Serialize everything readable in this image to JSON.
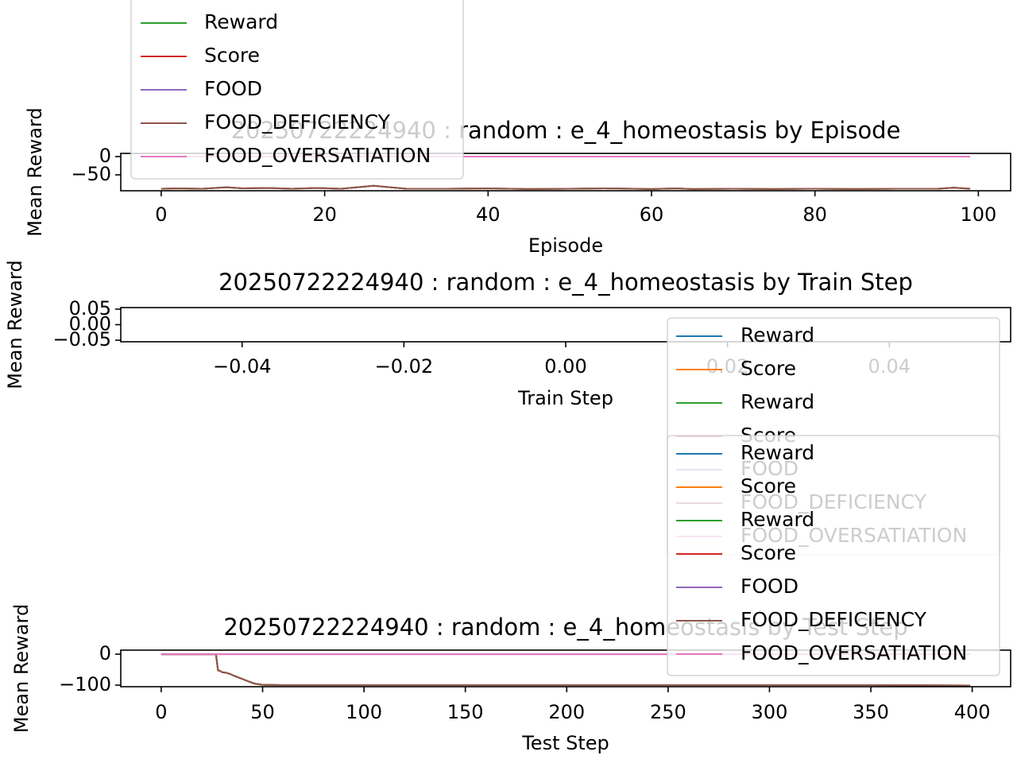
{
  "chart_data": [
    {
      "type": "line",
      "title": "20250722224940 : random : e_4_homeostasis by Episode",
      "xlabel": "Episode",
      "ylabel": "Mean Reward",
      "x": [
        0,
        2,
        5,
        8,
        10,
        13,
        16,
        19,
        22,
        26,
        30,
        35,
        40,
        45,
        50,
        55,
        60,
        63,
        65,
        70,
        75,
        80,
        85,
        90,
        95,
        97,
        99
      ],
      "series": [
        {
          "name": "Reward",
          "color": "#2ca02c",
          "values": [
            -88,
            -87,
            -88,
            -84,
            -87,
            -86,
            -88,
            -86,
            -88,
            -80,
            -88,
            -88,
            -87,
            -89,
            -88,
            -87,
            -89,
            -87,
            -89,
            -88,
            -89,
            -88,
            -89,
            -88,
            -88,
            -85,
            -88
          ]
        },
        {
          "name": "Score",
          "color": "#d62728",
          "values": [
            -88,
            -87,
            -88,
            -84,
            -87,
            -86,
            -88,
            -86,
            -88,
            -80,
            -88,
            -88,
            -87,
            -89,
            -88,
            -87,
            -89,
            -87,
            -89,
            -88,
            -89,
            -88,
            -89,
            -88,
            -88,
            -85,
            -88
          ]
        },
        {
          "name": "FOOD",
          "color": "#9467bd",
          "values": [
            0,
            0,
            0,
            0,
            0,
            0,
            0,
            0,
            0,
            0,
            0,
            0,
            0,
            0,
            0,
            0,
            0,
            0,
            0,
            0,
            0,
            0,
            0,
            0,
            0,
            0,
            0
          ]
        },
        {
          "name": "FOOD_DEFICIENCY",
          "color": "#8c564b",
          "values": [
            -88,
            -87,
            -88,
            -84,
            -87,
            -86,
            -88,
            -86,
            -88,
            -80,
            -88,
            -88,
            -87,
            -89,
            -88,
            -87,
            -89,
            -87,
            -89,
            -88,
            -89,
            -88,
            -89,
            -88,
            -88,
            -85,
            -88
          ]
        },
        {
          "name": "FOOD_OVERSATIATION",
          "color": "#e377c2",
          "values": [
            0,
            0,
            0,
            0,
            0,
            0,
            0,
            0,
            0,
            0,
            0,
            0,
            0,
            0,
            0,
            0,
            0,
            0,
            0,
            0,
            0,
            0,
            0,
            0,
            0,
            0,
            0
          ]
        }
      ],
      "xlim": [
        -4.95,
        103.95
      ],
      "ylim": [
        -93.5,
        8.7
      ],
      "xticks": [
        0,
        20,
        40,
        60,
        80,
        100
      ],
      "yticks": [
        {
          "value": -50,
          "label": "−50"
        },
        0
      ]
    },
    {
      "type": "line",
      "title": "20250722224940 : random : e_4_homeostasis by Train Step",
      "xlabel": "Train Step",
      "ylabel": "Mean Reward",
      "x": [],
      "series": [
        {
          "name": "Reward",
          "color": "#1f77b4",
          "values": []
        },
        {
          "name": "Score",
          "color": "#ff7f0e",
          "values": []
        },
        {
          "name": "Reward",
          "color": "#2ca02c",
          "values": []
        },
        {
          "name": "Score",
          "color": "#d62728",
          "values": []
        },
        {
          "name": "FOOD",
          "color": "#9467bd",
          "values": []
        },
        {
          "name": "FOOD_DEFICIENCY",
          "color": "#8c564b",
          "values": []
        },
        {
          "name": "FOOD_OVERSATIATION",
          "color": "#e377c2",
          "values": []
        }
      ],
      "xlim": [
        -0.055,
        0.055
      ],
      "ylim": [
        -0.055,
        0.055
      ],
      "xticks": [
        {
          "value": -0.04,
          "label": "−0.04"
        },
        {
          "value": -0.02,
          "label": "−0.02"
        },
        {
          "value": 0,
          "label": "0.00"
        },
        {
          "value": 0.02,
          "label": "0.02"
        },
        {
          "value": 0.04,
          "label": "0.04"
        }
      ],
      "yticks": [
        {
          "value": -0.05,
          "label": "−0.05"
        },
        {
          "value": 0,
          "label": "0.00"
        },
        {
          "value": 0.05,
          "label": "0.05"
        }
      ]
    },
    {
      "type": "line",
      "title": "20250722224940 : random : e_4_homeostasis by Test Step",
      "xlabel": "Test Step",
      "ylabel": "Mean Reward",
      "x": [
        0,
        10,
        20,
        27,
        28,
        29,
        30,
        32,
        34,
        36,
        38,
        40,
        43,
        46,
        50,
        60,
        80,
        100,
        150,
        200,
        250,
        300,
        350,
        399
      ],
      "series": [
        {
          "name": "Reward",
          "color": "#1f77b4",
          "values": [
            0,
            0,
            0,
            0,
            -52,
            -54,
            -58,
            -60,
            -64,
            -70,
            -75,
            -80,
            -88,
            -95,
            -99,
            -100,
            -100,
            -100,
            -100,
            -100,
            -100,
            -100,
            -100,
            -101
          ]
        },
        {
          "name": "Score",
          "color": "#ff7f0e",
          "values": [
            0,
            0,
            0,
            0,
            -52,
            -54,
            -58,
            -60,
            -64,
            -70,
            -75,
            -80,
            -88,
            -95,
            -99,
            -100,
            -100,
            -100,
            -100,
            -100,
            -100,
            -100,
            -100,
            -101
          ]
        },
        {
          "name": "Reward",
          "color": "#2ca02c",
          "values": [
            0,
            0,
            0,
            0,
            -52,
            -54,
            -58,
            -60,
            -64,
            -70,
            -75,
            -80,
            -88,
            -95,
            -99,
            -100,
            -100,
            -100,
            -100,
            -100,
            -100,
            -100,
            -100,
            -101
          ]
        },
        {
          "name": "Score",
          "color": "#d62728",
          "values": [
            0,
            0,
            0,
            0,
            -52,
            -54,
            -58,
            -60,
            -64,
            -70,
            -75,
            -80,
            -88,
            -95,
            -99,
            -100,
            -100,
            -100,
            -100,
            -100,
            -100,
            -100,
            -100,
            -101
          ]
        },
        {
          "name": "FOOD",
          "color": "#9467bd",
          "values": [
            0,
            0,
            0,
            0,
            0,
            0,
            0,
            0,
            0,
            0,
            0,
            0,
            0,
            0,
            0,
            0,
            0,
            0,
            0,
            0,
            0,
            0,
            0,
            0
          ]
        },
        {
          "name": "FOOD_DEFICIENCY",
          "color": "#8c564b",
          "values": [
            0,
            0,
            0,
            0,
            -52,
            -54,
            -58,
            -60,
            -64,
            -70,
            -75,
            -80,
            -88,
            -95,
            -99,
            -100,
            -100,
            -100,
            -100,
            -100,
            -100,
            -100,
            -100,
            -101
          ]
        },
        {
          "name": "FOOD_OVERSATIATION",
          "color": "#e377c2",
          "values": [
            0,
            0,
            0,
            0,
            0,
            0,
            0,
            0,
            0,
            0,
            0,
            0,
            0,
            0,
            0,
            0,
            0,
            0,
            0,
            0,
            0,
            0,
            0,
            0
          ]
        }
      ],
      "xlim": [
        -19.95,
        418.95
      ],
      "ylim": [
        -105,
        13
      ],
      "xticks": [
        0,
        50,
        100,
        150,
        200,
        250,
        300,
        350,
        400
      ],
      "yticks": [
        {
          "value": -100,
          "label": "−100"
        },
        0
      ]
    }
  ]
}
